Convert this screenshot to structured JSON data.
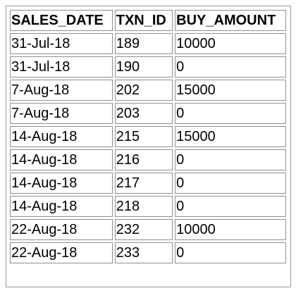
{
  "table": {
    "headers": [
      "SALES_DATE",
      "TXN_ID",
      "BUY_AMOUNT"
    ],
    "rows": [
      [
        "31-Jul-18",
        "189",
        "10000"
      ],
      [
        "31-Jul-18",
        "190",
        "0"
      ],
      [
        "7-Aug-18",
        "202",
        "15000"
      ],
      [
        "7-Aug-18",
        "203",
        "0"
      ],
      [
        "14-Aug-18",
        "215",
        "15000"
      ],
      [
        "14-Aug-18",
        "216",
        "0"
      ],
      [
        "14-Aug-18",
        "217",
        "0"
      ],
      [
        "14-Aug-18",
        "218",
        "0"
      ],
      [
        "22-Aug-18",
        "232",
        "10000"
      ],
      [
        "22-Aug-18",
        "233",
        "0"
      ]
    ]
  }
}
